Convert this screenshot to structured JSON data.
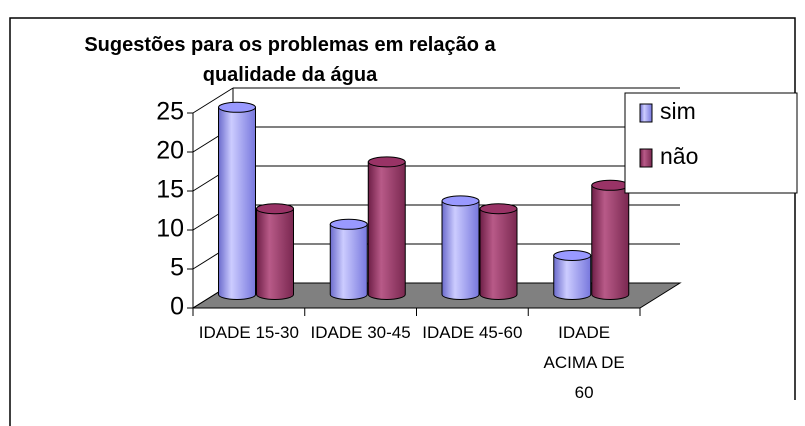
{
  "chart_data": {
    "type": "bar",
    "title": "Sugestões para os problemas em relação a qualidade da água",
    "categories": [
      "IDADE 15-30",
      "IDADE 30-45",
      "IDADE 45-60",
      "IDADE ACIMA DE 60"
    ],
    "series": [
      {
        "name": "sim",
        "color": "#9999ff",
        "values": [
          24,
          9,
          12,
          5
        ]
      },
      {
        "name": "não",
        "color": "#993366",
        "values": [
          11,
          17,
          11,
          14
        ]
      }
    ],
    "ylim": [
      0,
      25
    ],
    "yticks": [
      0,
      5,
      10,
      15,
      20,
      25
    ],
    "grid": true,
    "legend": "right"
  }
}
